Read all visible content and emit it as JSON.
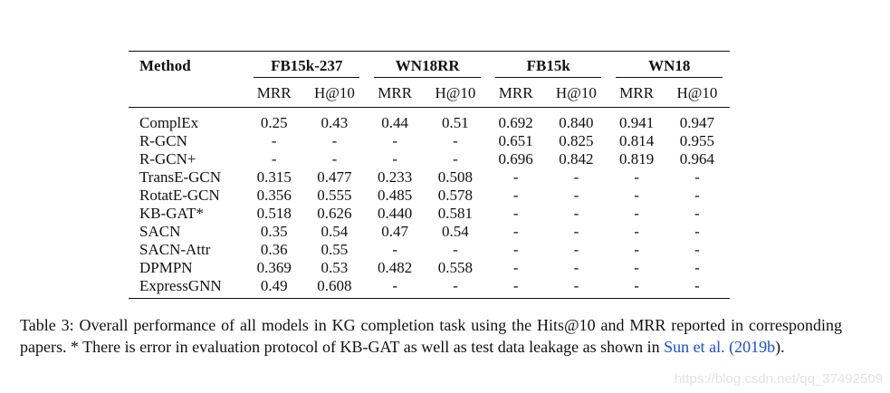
{
  "table": {
    "method_header": "Method",
    "groups": [
      "FB15k-237",
      "WN18RR",
      "FB15k",
      "WN18"
    ],
    "metrics": [
      "MRR",
      "H@10",
      "MRR",
      "H@10",
      "MRR",
      "H@10",
      "MRR",
      "H@10"
    ],
    "rows": [
      {
        "method": "ComplEx",
        "values": [
          "0.25",
          "0.43",
          "0.44",
          "0.51",
          "0.692",
          "0.840",
          "0.941",
          "0.947"
        ]
      },
      {
        "method": "R-GCN",
        "values": [
          "-",
          "-",
          "-",
          "-",
          "0.651",
          "0.825",
          "0.814",
          "0.955"
        ]
      },
      {
        "method": "R-GCN+",
        "values": [
          "-",
          "-",
          "-",
          "-",
          "0.696",
          "0.842",
          "0.819",
          "0.964"
        ]
      },
      {
        "method": "TransE-GCN",
        "values": [
          "0.315",
          "0.477",
          "0.233",
          "0.508",
          "-",
          "-",
          "-",
          "-"
        ]
      },
      {
        "method": "RotatE-GCN",
        "values": [
          "0.356",
          "0.555",
          "0.485",
          "0.578",
          "-",
          "-",
          "-",
          "-"
        ]
      },
      {
        "method": "KB-GAT*",
        "values": [
          "0.518",
          "0.626",
          "0.440",
          "0.581",
          "-",
          "-",
          "-",
          "-"
        ]
      },
      {
        "method": "SACN",
        "values": [
          "0.35",
          "0.54",
          "0.47",
          "0.54",
          "-",
          "-",
          "-",
          "-"
        ]
      },
      {
        "method": "SACN-Attr",
        "values": [
          "0.36",
          "0.55",
          "-",
          "-",
          "-",
          "-",
          "-",
          "-"
        ]
      },
      {
        "method": "DPMPN",
        "values": [
          "0.369",
          "0.53",
          "0.482",
          "0.558",
          "-",
          "-",
          "-",
          "-"
        ]
      },
      {
        "method": "ExpressGNN",
        "values": [
          "0.49",
          "0.608",
          "-",
          "-",
          "-",
          "-",
          "-",
          "-"
        ]
      }
    ]
  },
  "caption": {
    "text": "Table 3: Overall performance of all models in KG completion task using the Hits@10 and MRR reported in corresponding papers. * There is error in evaluation protocol of KB-GAT as well as test data leakage as shown in",
    "citation_author": "Sun et al.",
    "citation_year_open": " (",
    "citation_year": "2019b",
    "citation_close": ").",
    "link_color": "#1a4fd6"
  },
  "watermark": "https://blog.csdn.net/qq_37492509"
}
